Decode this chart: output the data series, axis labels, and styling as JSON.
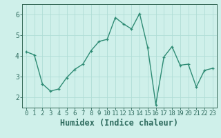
{
  "x": [
    0,
    1,
    2,
    3,
    4,
    5,
    6,
    7,
    8,
    9,
    10,
    11,
    12,
    13,
    14,
    15,
    16,
    17,
    18,
    19,
    20,
    21,
    22,
    23
  ],
  "y": [
    4.2,
    4.05,
    2.65,
    2.3,
    2.4,
    2.95,
    3.35,
    3.6,
    4.25,
    4.7,
    4.8,
    5.85,
    5.55,
    5.3,
    6.05,
    4.4,
    1.65,
    3.95,
    4.45,
    3.55,
    3.6,
    2.5,
    3.3,
    3.4
  ],
  "line_color": "#2e8b74",
  "marker": "+",
  "marker_size": 3.5,
  "linewidth": 1.0,
  "xlabel": "Humidex (Indice chaleur)",
  "xlim": [
    -0.5,
    23.5
  ],
  "ylim": [
    1.5,
    6.5
  ],
  "yticks": [
    2,
    3,
    4,
    5,
    6
  ],
  "xticks": [
    0,
    1,
    2,
    3,
    4,
    5,
    6,
    7,
    8,
    9,
    10,
    11,
    12,
    13,
    14,
    15,
    16,
    17,
    18,
    19,
    20,
    21,
    22,
    23
  ],
  "bg_color": "#cff0ea",
  "grid_color": "#b0ddd6",
  "axes_color": "#336655",
  "tick_label_color": "#2e6b5e",
  "xlabel_color": "#2e6b5e",
  "tick_fontsize": 6.5,
  "xlabel_fontsize": 8.5
}
